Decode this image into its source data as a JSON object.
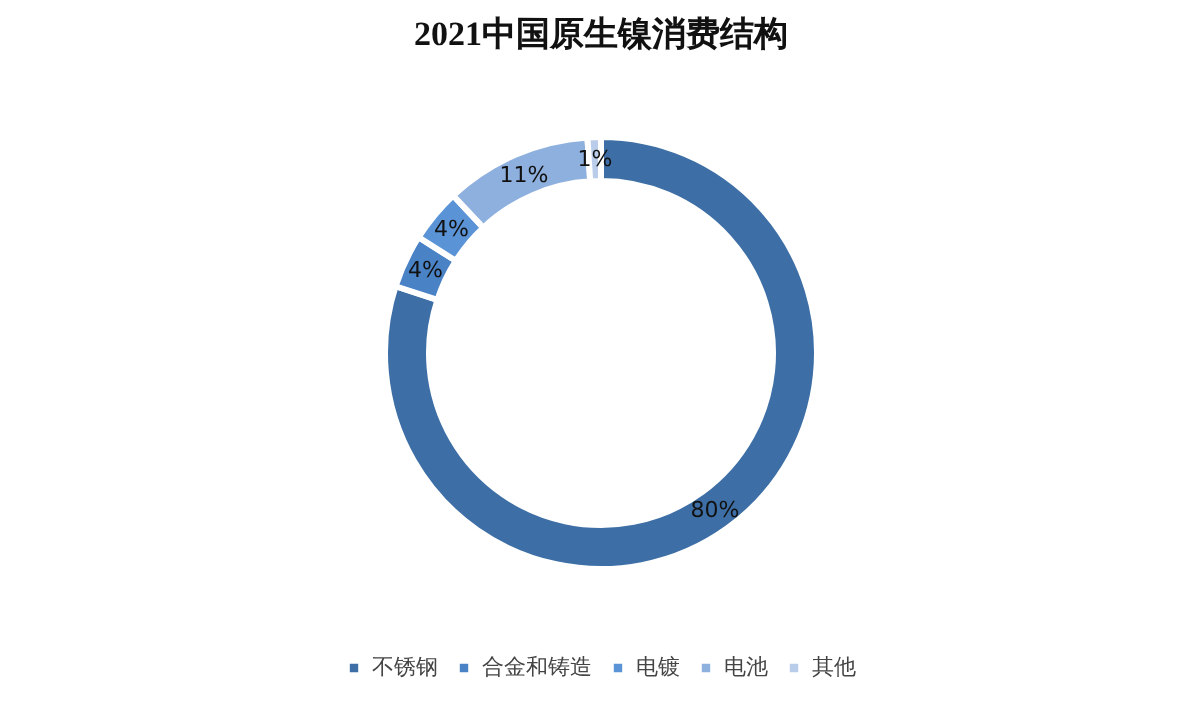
{
  "chart_data": {
    "type": "donut",
    "title": "2021中国原生镍消费结构",
    "categories": [
      "不锈钢",
      "合金和铸造",
      "电镀",
      "电池",
      "其他"
    ],
    "values": [
      80,
      4,
      4,
      11,
      1
    ],
    "colors": [
      "#3d6fa6",
      "#4a82c6",
      "#5a93d6",
      "#8eb0de",
      "#b9cdeb"
    ],
    "value_labels": [
      "80%",
      "4%",
      "4%",
      "11%",
      "1%"
    ],
    "legend": "bottom"
  }
}
